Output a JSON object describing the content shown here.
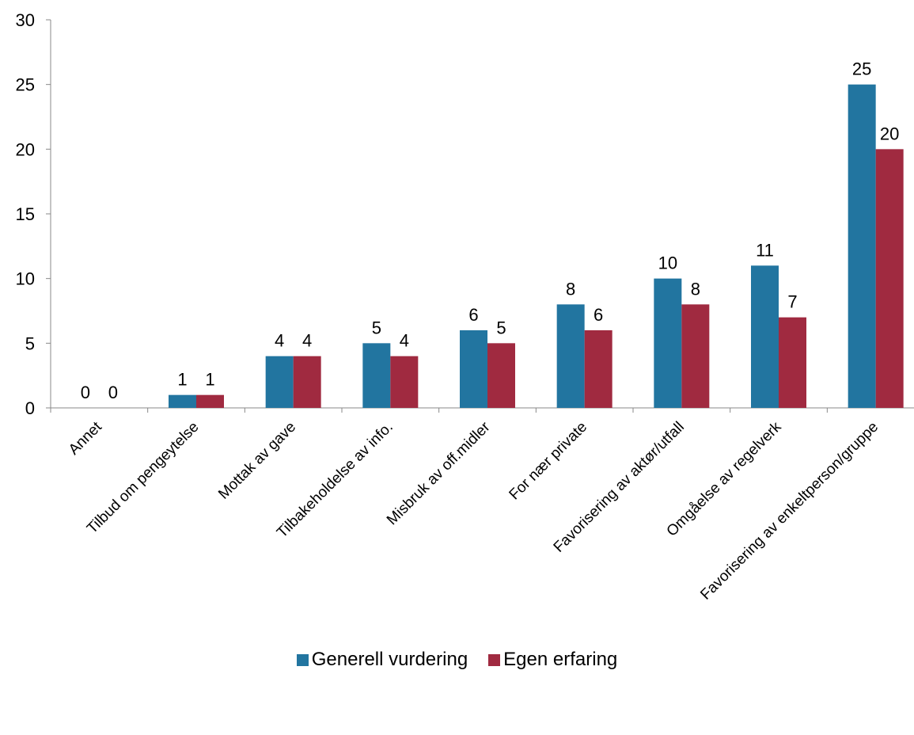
{
  "chart_data": {
    "type": "bar",
    "categories": [
      "Annet",
      "Tilbud om pengeytelse",
      "Mottak av gave",
      "Tilbakeholdelse av info.",
      "Misbruk av off.midler",
      "For nær private",
      "Favorisering av aktør/utfall",
      "Omgåelse av regelverk",
      "Favorisering av enkeltperson/gruppe"
    ],
    "series": [
      {
        "name": "Generell vurdering",
        "color": "#2275A0",
        "values": [
          0,
          1,
          4,
          5,
          6,
          8,
          10,
          11,
          25
        ]
      },
      {
        "name": "Egen erfaring",
        "color": "#A02A40",
        "values": [
          0,
          1,
          4,
          4,
          5,
          6,
          8,
          7,
          20
        ]
      }
    ],
    "ylim": [
      0,
      30
    ],
    "yticks": [
      0,
      5,
      10,
      15,
      20,
      25,
      30
    ],
    "grid": false,
    "legend_position": "bottom",
    "data_labels": true
  }
}
